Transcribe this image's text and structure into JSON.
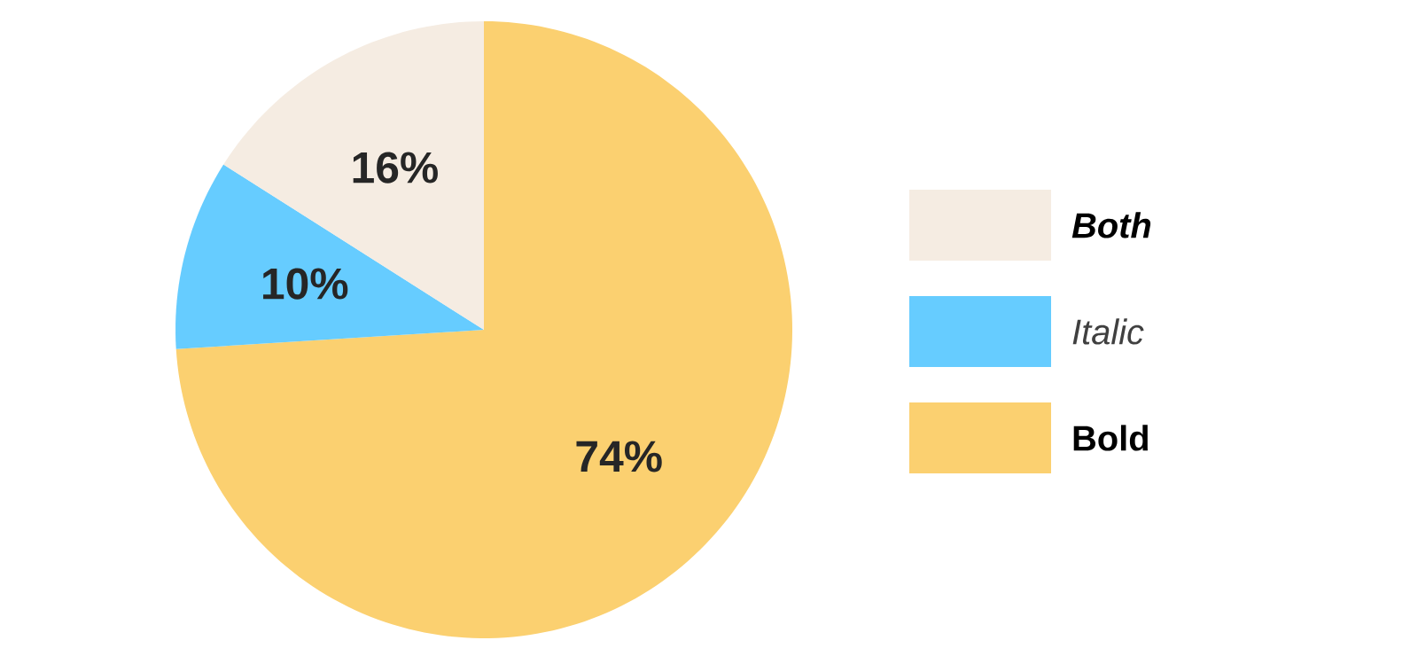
{
  "chart_data": {
    "type": "pie",
    "categories": [
      "Bold",
      "Italic",
      "Both"
    ],
    "values": [
      74,
      10,
      16
    ],
    "colors": [
      "#fbd070",
      "#66ccff",
      "#f5ece2"
    ],
    "value_labels": [
      "74%",
      "10%",
      "16%"
    ],
    "legend": "right"
  }
}
